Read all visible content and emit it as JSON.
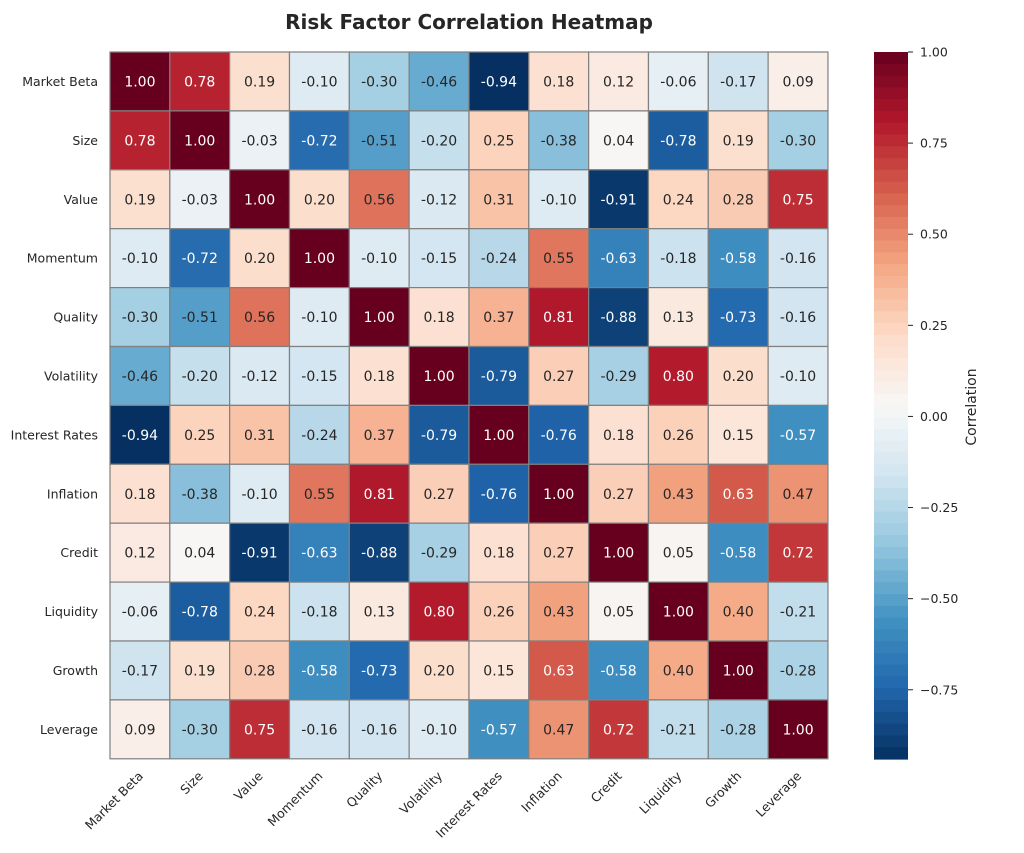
{
  "chart_data": {
    "type": "heatmap",
    "title": "Risk Factor Correlation Heatmap",
    "row_labels": [
      "Market Beta",
      "Size",
      "Value",
      "Momentum",
      "Quality",
      "Volatility",
      "Interest Rates",
      "Inflation",
      "Credit",
      "Liquidity",
      "Growth",
      "Leverage"
    ],
    "col_labels": [
      "Market Beta",
      "Size",
      "Value",
      "Momentum",
      "Quality",
      "Volatility",
      "Interest Rates",
      "Inflation",
      "Credit",
      "Liquidity",
      "Growth",
      "Leverage"
    ],
    "values": [
      [
        1.0,
        0.78,
        0.19,
        -0.1,
        -0.3,
        -0.46,
        -0.94,
        0.18,
        0.12,
        -0.06,
        -0.17,
        0.09
      ],
      [
        0.78,
        1.0,
        -0.03,
        -0.72,
        -0.51,
        -0.2,
        0.25,
        -0.38,
        0.04,
        -0.78,
        0.19,
        -0.3
      ],
      [
        0.19,
        -0.03,
        1.0,
        0.2,
        0.56,
        -0.12,
        0.31,
        -0.1,
        -0.91,
        0.24,
        0.28,
        0.75
      ],
      [
        -0.1,
        -0.72,
        0.2,
        1.0,
        -0.1,
        -0.15,
        -0.24,
        0.55,
        -0.63,
        -0.18,
        -0.58,
        -0.16
      ],
      [
        -0.3,
        -0.51,
        0.56,
        -0.1,
        1.0,
        0.18,
        0.37,
        0.81,
        -0.88,
        0.13,
        -0.73,
        -0.16
      ],
      [
        -0.46,
        -0.2,
        -0.12,
        -0.15,
        0.18,
        1.0,
        -0.79,
        0.27,
        -0.29,
        0.8,
        0.2,
        -0.1
      ],
      [
        -0.94,
        0.25,
        0.31,
        -0.24,
        0.37,
        -0.79,
        1.0,
        -0.76,
        0.18,
        0.26,
        0.15,
        -0.57
      ],
      [
        0.18,
        -0.38,
        -0.1,
        0.55,
        0.81,
        0.27,
        -0.76,
        1.0,
        0.27,
        0.43,
        0.63,
        0.47
      ],
      [
        0.12,
        0.04,
        -0.91,
        -0.63,
        -0.88,
        -0.29,
        0.18,
        0.27,
        1.0,
        0.05,
        -0.58,
        0.72
      ],
      [
        -0.06,
        -0.78,
        0.24,
        -0.18,
        0.13,
        0.8,
        0.26,
        0.43,
        0.05,
        1.0,
        0.4,
        -0.21
      ],
      [
        -0.17,
        0.19,
        0.28,
        -0.58,
        -0.73,
        0.2,
        0.15,
        0.63,
        -0.58,
        0.4,
        1.0,
        -0.28
      ],
      [
        0.09,
        -0.3,
        0.75,
        -0.16,
        -0.16,
        -0.1,
        -0.57,
        0.47,
        0.72,
        -0.21,
        -0.28,
        1.0
      ]
    ],
    "value_format": "2 decimals",
    "colormap": "RdBu_r",
    "vmin": -0.94,
    "vmax": 1.0,
    "colorbar": {
      "label": "Correlation",
      "ticks": [
        "−0.75",
        "−0.50",
        "−0.25",
        "0.00",
        "0.25",
        "0.50",
        "0.75",
        "1.00"
      ],
      "tick_values": [
        -0.75,
        -0.5,
        -0.25,
        0,
        0.25,
        0.5,
        0.75,
        1.0
      ]
    },
    "grid": false,
    "cell_border_color": "#808080"
  }
}
